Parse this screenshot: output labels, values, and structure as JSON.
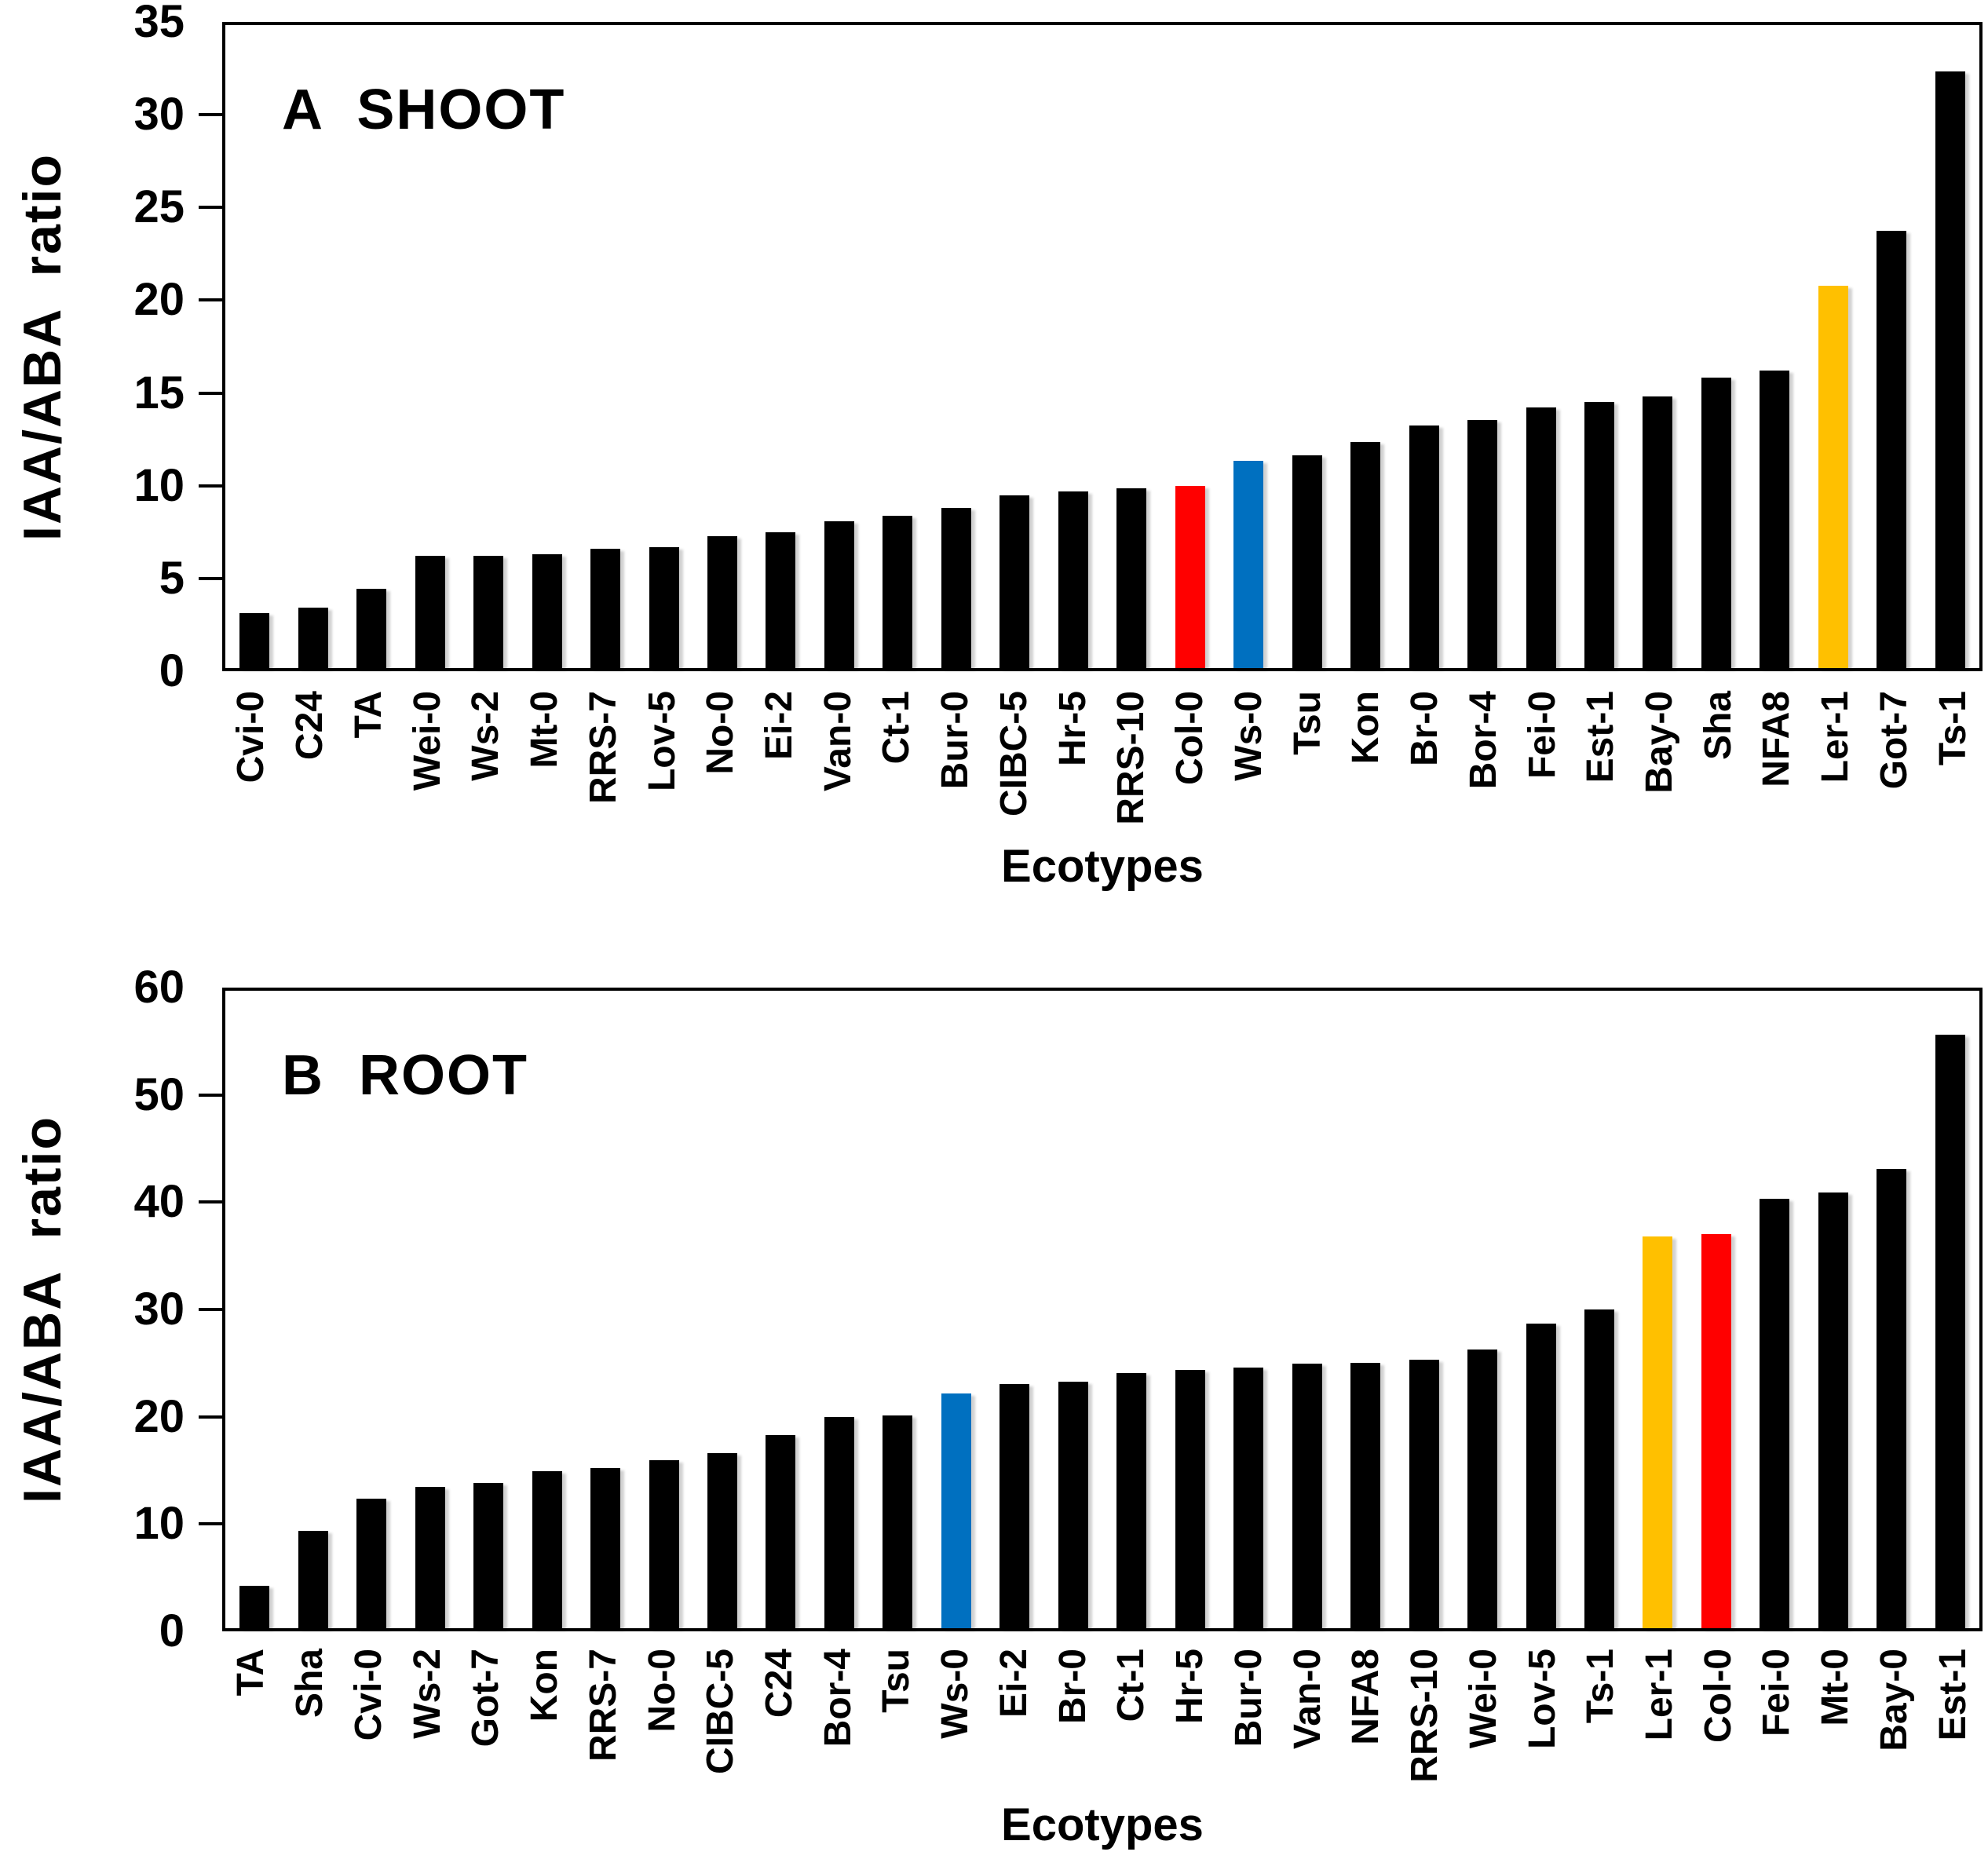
{
  "chart_data": [
    {
      "type": "bar",
      "panel_label": "A",
      "title": "A  SHOOT",
      "xlabel": "Ecotypes",
      "ylabel": "IAA/ABA  ratio",
      "ylim": [
        0,
        35
      ],
      "ytick_interval": 5,
      "ytick_labels": [
        "0",
        "5",
        "10",
        "15",
        "20",
        "25",
        "30",
        "35"
      ],
      "grid": false,
      "legend": false,
      "bar_color_default": "#000000",
      "highlight_colors": {
        "Col-0": "#FF0000",
        "Ws-0": "#0070C0",
        "Ler-1": "#FFC000"
      },
      "categories": [
        "Cvi-0",
        "C24",
        "TA",
        "Wei-0",
        "Ws-2",
        "Mt-0",
        "RRS-7",
        "Lov-5",
        "No-0",
        "Ei-2",
        "Van-0",
        "Ct-1",
        "Bur-0",
        "CIBC-5",
        "Hr-5",
        "RRS-10",
        "Col-0",
        "Ws-0",
        "Tsu",
        "Kon",
        "Br-0",
        "Bor-4",
        "Fei-0",
        "Est-1",
        "Bay-0",
        "Sha",
        "NFA8",
        "Ler-1",
        "Got-7",
        "Ts-1"
      ],
      "values": [
        3.0,
        3.3,
        4.3,
        6.1,
        6.1,
        6.2,
        6.5,
        6.6,
        7.2,
        7.4,
        8.0,
        8.3,
        8.7,
        9.4,
        9.6,
        9.8,
        9.9,
        11.3,
        11.6,
        12.3,
        13.2,
        13.5,
        14.2,
        14.5,
        14.8,
        15.8,
        16.2,
        20.8,
        23.8,
        32.5
      ]
    },
    {
      "type": "bar",
      "panel_label": "B",
      "title": "B  ROOT",
      "xlabel": "Ecotypes",
      "ylabel": "IAA/ABA  ratio",
      "ylim": [
        0,
        60
      ],
      "ytick_interval": 10,
      "ytick_labels": [
        "0",
        "10",
        "20",
        "30",
        "40",
        "50",
        "60"
      ],
      "grid": false,
      "legend": false,
      "bar_color_default": "#000000",
      "highlight_colors": {
        "Col-0": "#FF0000",
        "Ws-0": "#0070C0",
        "Ler-1": "#FFC000"
      },
      "categories": [
        "TA",
        "Sha",
        "Cvi-0",
        "Ws-2",
        "Got-7",
        "Kon",
        "RRS-7",
        "No-0",
        "CIBC-5",
        "C24",
        "Bor-4",
        "Tsu",
        "Ws-0",
        "Ei-2",
        "Br-0",
        "Ct-1",
        "Hr-5",
        "Bur-0",
        "Van-0",
        "NFA8",
        "RRS-10",
        "Wei-0",
        "Lov-5",
        "Ts-1",
        "Ler-1",
        "Col-0",
        "Fei-0",
        "Mt-0",
        "Bay-0",
        "Est-1"
      ],
      "values": [
        4.0,
        9.2,
        12.2,
        13.3,
        13.7,
        14.8,
        15.1,
        15.8,
        16.5,
        18.2,
        19.9,
        20.0,
        22.1,
        23.0,
        23.2,
        24.0,
        24.3,
        24.5,
        24.9,
        25.0,
        25.3,
        26.2,
        28.7,
        30.0,
        36.9,
        37.1,
        40.4,
        41.0,
        43.2,
        55.9
      ]
    }
  ]
}
